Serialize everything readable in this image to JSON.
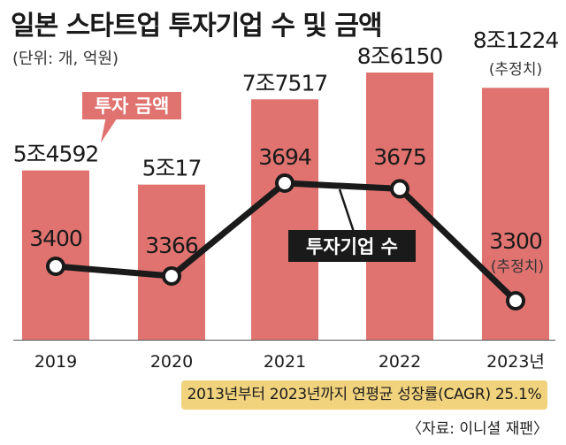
{
  "header": {
    "title": "일본 스타트업 투자기업 수 및 금액",
    "unit": "(단위: 개, 억원)"
  },
  "footer": {
    "cagr_note": "2013년부터 2023년까지 연평균 성장률(CAGR) 25.1%",
    "source": "〈자료: 이니셜 재팬〉"
  },
  "chart_data": {
    "type": "bar",
    "categories": [
      "2019",
      "2020",
      "2021",
      "2022",
      "2023년"
    ],
    "ylim": [
      0,
      90000
    ],
    "series": [
      {
        "name": "투자 금액",
        "kind": "bar",
        "color": "#e07370",
        "values": [
          54592,
          50017,
          77517,
          86150,
          81224
        ],
        "labels": [
          "5조4592",
          "5조17",
          "7조7517",
          "8조6150",
          "8조1224"
        ],
        "estimated": [
          false,
          false,
          false,
          false,
          true
        ]
      },
      {
        "name": "투자기업 수",
        "kind": "line",
        "color": "#1a1a1a",
        "values": [
          3400,
          3366,
          3694,
          3675,
          3300
        ],
        "labels": [
          "3400",
          "3366",
          "3694",
          "3675",
          "3300"
        ],
        "estimated": [
          false,
          false,
          false,
          false,
          true
        ]
      }
    ],
    "estimate_label": "(추정치)",
    "grid": false
  }
}
